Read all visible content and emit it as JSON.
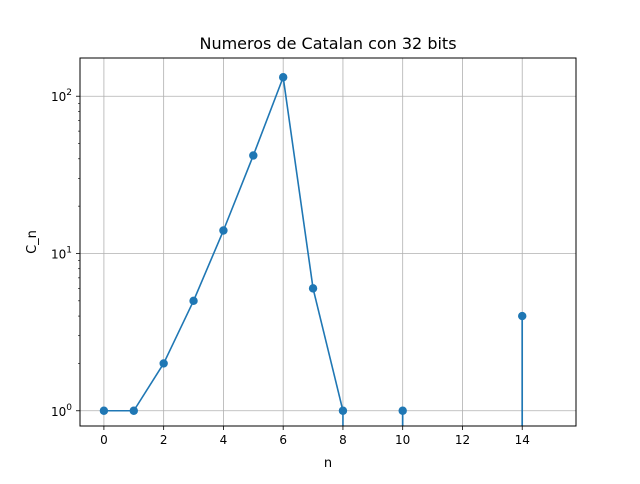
{
  "chart_data": {
    "type": "line",
    "title": "Numeros de Catalan con 32 bits",
    "xlabel": "n",
    "ylabel": "C_n",
    "xlim": [
      -0.8,
      15.8
    ],
    "ylim": [
      0.8,
      175
    ],
    "yscale": "log",
    "grid": true,
    "x_ticks": [
      0,
      2,
      4,
      6,
      8,
      10,
      12,
      14
    ],
    "x_tick_labels": [
      "0",
      "2",
      "4",
      "6",
      "8",
      "10",
      "12",
      "14"
    ],
    "y_ticks": [
      1,
      10,
      100
    ],
    "y_tick_labels": [
      {
        "base": "10",
        "exp": "0"
      },
      {
        "base": "10",
        "exp": "1"
      },
      {
        "base": "10",
        "exp": "2"
      }
    ],
    "series": [
      {
        "x": [
          0,
          1,
          2,
          3,
          4,
          5,
          6,
          7,
          8,
          9,
          10,
          11,
          12,
          13,
          14,
          15
        ],
        "y": [
          1,
          1,
          2,
          5,
          14,
          42,
          132,
          6,
          1,
          0,
          1,
          0,
          0,
          0,
          4,
          0
        ],
        "color": "#1f77b4",
        "marker": "circle"
      }
    ]
  }
}
